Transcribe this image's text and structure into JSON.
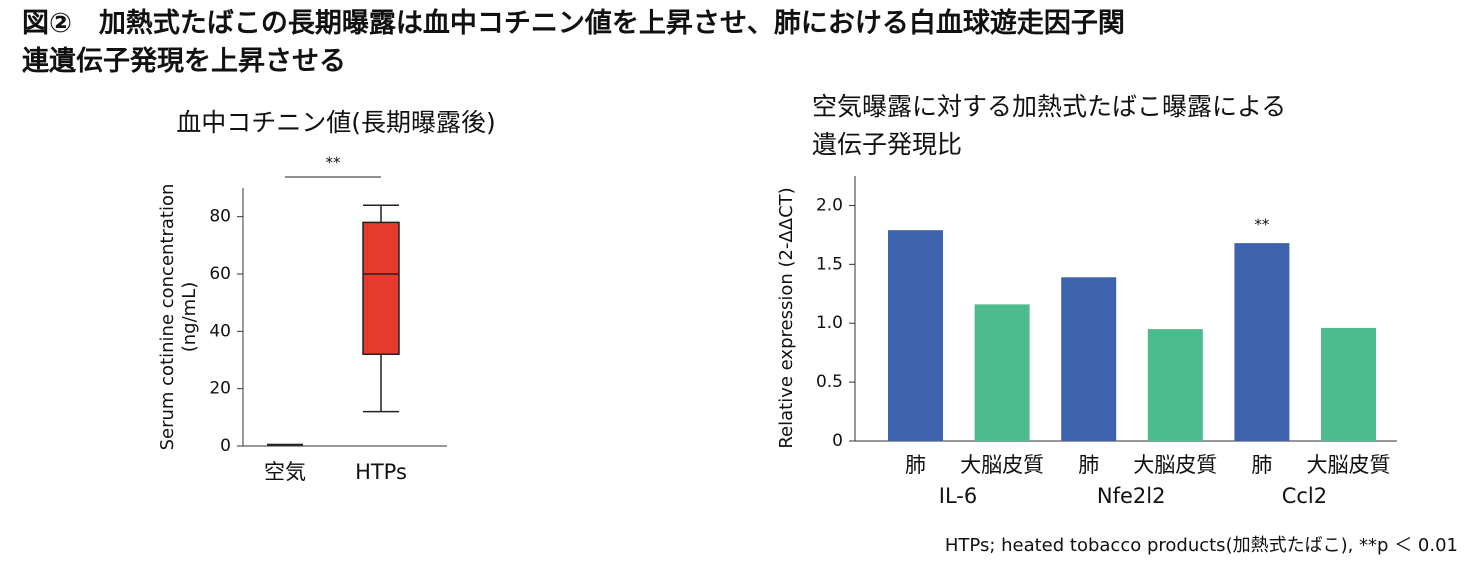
{
  "title": [
    "図②　加熱式たばこの長期曝露は血中コチニン値を上昇させ、肺における白血球遊走因子関",
    "連遺伝子発現を上昇させる"
  ],
  "footnote": "HTPs; heated tobacco products(加熱式たばこ), **p ＜ 0.01",
  "chart_data": [
    {
      "type": "box",
      "title": "血中コチニン値(長期曝露後)",
      "ylabel": [
        "Serum cotinine concentration",
        "(ng/mL)"
      ],
      "categories": [
        "空気",
        "HTPs"
      ],
      "boxes": [
        {
          "min": 0.5,
          "q1": 0.5,
          "median": 0.5,
          "q3": 0.5,
          "max": 0.5,
          "color": "#222222"
        },
        {
          "min": 12,
          "q1": 32,
          "median": 60,
          "q3": 78,
          "max": 84,
          "color": "#e53a2c"
        }
      ],
      "significance": "**",
      "ylim": [
        0,
        90
      ],
      "yticks": [
        0,
        20,
        40,
        60,
        80
      ]
    },
    {
      "type": "bar",
      "title": [
        "空気曝露に対する加熱式たばこ曝露による",
        "遺伝子発現比"
      ],
      "ylabel": "Relative expression (2-ΔΔCT)",
      "groups": [
        "IL-6",
        "Nfe2l2",
        "Ccl2"
      ],
      "series": [
        {
          "name": "肺",
          "color": "#3d62ae",
          "values": [
            1.79,
            1.39,
            1.68
          ]
        },
        {
          "name": "大脳皮質",
          "color": "#4cbb8d",
          "values": [
            1.16,
            0.95,
            0.96
          ]
        }
      ],
      "significance": "**",
      "ylim": [
        0,
        2.25
      ],
      "yticks": [
        0,
        0.5,
        {
          "value": 1,
          "label": "1.0"
        },
        1.5,
        {
          "value": 2,
          "label": "2.0"
        }
      ]
    }
  ]
}
